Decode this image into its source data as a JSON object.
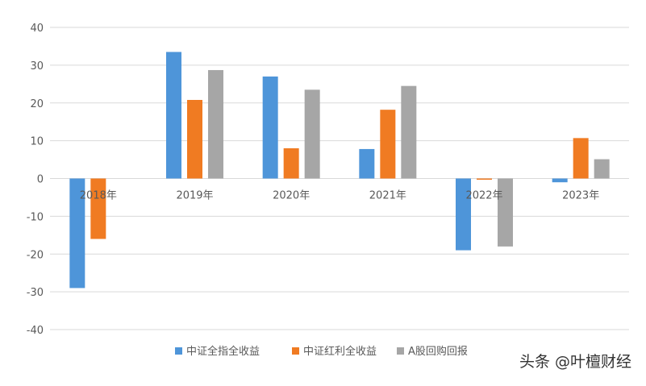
{
  "chart_data": {
    "type": "bar",
    "categories": [
      "2018年",
      "2019年",
      "2020年",
      "2021年",
      "2022年",
      "2023年"
    ],
    "series": [
      {
        "name": "中证全指全收益",
        "color": "#4e95d9",
        "values": [
          -29,
          33.5,
          27,
          7.8,
          -19,
          -1
        ]
      },
      {
        "name": "中证红利全收益",
        "color": "#f07b22",
        "values": [
          -16,
          20.8,
          8,
          18.2,
          -0.3,
          10.7
        ]
      },
      {
        "name": "A股回购回报",
        "color": "#a6a6a6",
        "values": [
          0,
          28.7,
          23.5,
          24.5,
          -18,
          5.1
        ]
      }
    ],
    "yticks": [
      "40",
      "30",
      "20",
      "10",
      "0",
      "-10",
      "-20",
      "-30",
      "-40"
    ],
    "ylim": [
      -40,
      40
    ],
    "grid": true,
    "legend": "bottom"
  },
  "watermark": "头条 @叶檀财经"
}
